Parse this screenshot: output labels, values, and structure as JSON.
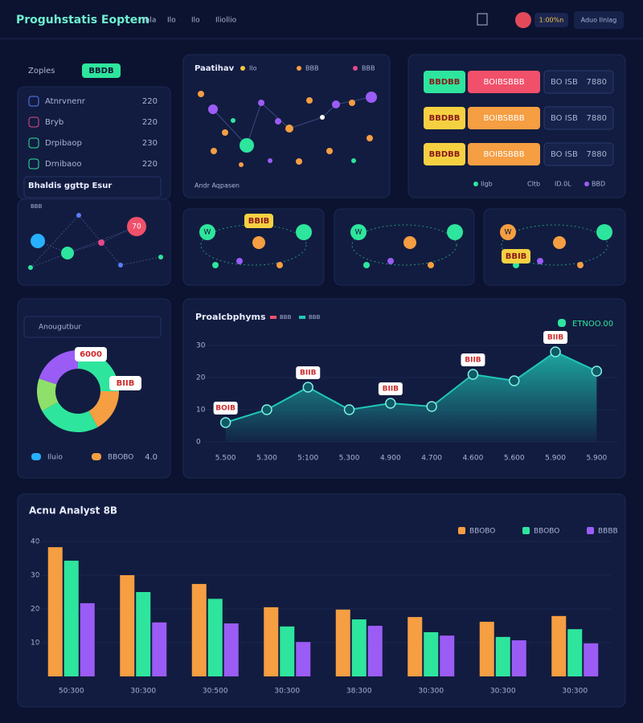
{
  "header": {
    "title": "Proguhstatis Eoptem",
    "tabs": [
      "Inla",
      "Ilo",
      "Ilo",
      "Iliollio"
    ],
    "status": "1:00%n",
    "button": "Aduo Ilnlag"
  },
  "side_panel": {
    "label": "Zoples",
    "button": "BBDB",
    "items": [
      {
        "name": "Atnrvnenr",
        "value": "220"
      },
      {
        "name": "Bryb",
        "value": "220"
      },
      {
        "name": "Drpibaop",
        "value": "230"
      },
      {
        "name": "Drnibaoo",
        "value": "220"
      }
    ],
    "search": "Bhaldis ggttp Esur",
    "search_hint": "BBB",
    "node_label": "70"
  },
  "scatter_panel": {
    "title": "Paatihav",
    "legend": [
      "Ilo",
      "BBB",
      "BBB"
    ],
    "footer": "Andr Aqpasen"
  },
  "badge_panel": {
    "rows": [
      {
        "tag": "BBDBB",
        "amount": "BOIBSBBB",
        "code": "BO ISB",
        "value": "7880"
      },
      {
        "tag": "BBDBB",
        "amount": "BOIBSBBB",
        "code": "BO ISB",
        "value": "7880"
      },
      {
        "tag": "BBDBB",
        "amount": "BOIBSBBB",
        "code": "BO ISB",
        "value": "7880"
      }
    ],
    "legend": [
      "Ilgb",
      "Cltb",
      "ID.0L",
      "BBD"
    ]
  },
  "network_cards": [
    {
      "badge": "BBIB",
      "node": "W"
    },
    {
      "node": "W"
    },
    {
      "badge": "BBIB",
      "node": "W"
    }
  ],
  "donut_chart": {
    "type": "pie",
    "title": "Anougutbur",
    "values": [
      25,
      17,
      25,
      13,
      20
    ],
    "colors": [
      "#2ee59d",
      "#f59e42",
      "#2ee59d",
      "#8ee06a",
      "#9b5cf6"
    ],
    "callouts": [
      "6000",
      "BIIB"
    ],
    "legend": [
      "Iluio",
      "BBOBO"
    ],
    "legend_value": "4.0"
  },
  "line_chart": {
    "type": "line",
    "title": "Proalcbphyms",
    "legend": [
      "BBB",
      "BBB"
    ],
    "summary": "ETNOO.00",
    "categories": [
      "5.500",
      "5.300",
      "5:100",
      "5.300",
      "4.900",
      "4.700",
      "4.600",
      "5.600",
      "5.900",
      "5.900"
    ],
    "values": [
      6,
      10,
      17,
      10,
      12,
      11,
      21,
      19,
      28,
      22
    ],
    "color": "#1fc8b8",
    "callouts": [
      "BOIB",
      "BIIB",
      "BIIB",
      "BIIB",
      "BIIB"
    ],
    "ylim": [
      0,
      30
    ],
    "yticks": [
      0,
      10,
      20,
      30
    ]
  },
  "bar_chart": {
    "type": "bar",
    "title": "Acnu Analyst 8B",
    "categories": [
      "50:300",
      "30:300",
      "30:500",
      "30:300",
      "38:300",
      "30:300",
      "30:300",
      "30:300"
    ],
    "series": [
      {
        "name": "BBOBO",
        "color": "#f59e42",
        "values": [
          38.3,
          30,
          27.4,
          20.5,
          19.8,
          17.6,
          16.2,
          17.9
        ]
      },
      {
        "name": "BBOBO",
        "color": "#2ee59d",
        "values": [
          34.3,
          25,
          23,
          14.8,
          16.9,
          13.1,
          11.7,
          14
        ]
      },
      {
        "name": "BBBB",
        "color": "#9b5cf6",
        "values": [
          21.7,
          16,
          15.7,
          10.2,
          15,
          12.1,
          10.7,
          9.8
        ]
      }
    ],
    "ylim": [
      0,
      40
    ],
    "yticks": [
      10,
      20,
      30,
      40
    ]
  }
}
